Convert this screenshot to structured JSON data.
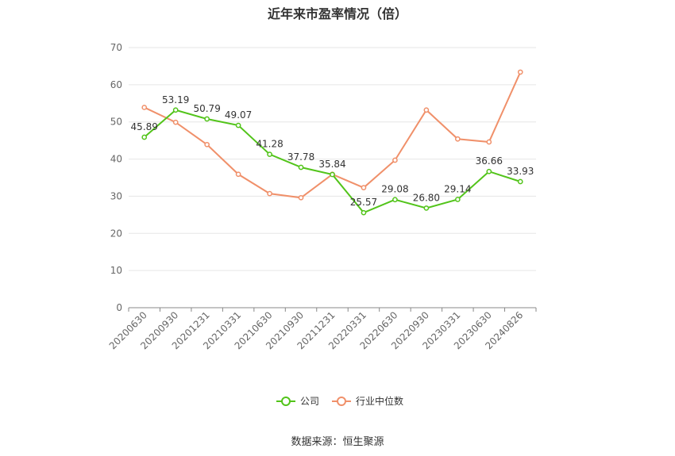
{
  "chart_data": {
    "type": "line",
    "title": "近年来市盈率情况（倍）",
    "xlabel": "",
    "ylabel": "",
    "ylim": [
      0,
      70
    ],
    "yticks": [
      0,
      10,
      20,
      30,
      40,
      50,
      60,
      70
    ],
    "grid": true,
    "legend_position": "bottom",
    "categories": [
      "20200630",
      "20200930",
      "20201231",
      "20210331",
      "20210630",
      "20210930",
      "20211231",
      "20220331",
      "20220630",
      "20220930",
      "20230331",
      "20230630",
      "20240826"
    ],
    "series": [
      {
        "name": "公司",
        "color": "#52c41a",
        "values": [
          45.89,
          53.19,
          50.79,
          49.07,
          41.28,
          37.78,
          35.84,
          25.57,
          29.08,
          26.8,
          29.14,
          36.66,
          33.93
        ],
        "labels": [
          "45.89",
          "53.19",
          "50.79",
          "49.07",
          "41.28",
          "37.78",
          "35.84",
          "25.57",
          "29.08",
          "26.80",
          "29.14",
          "36.66",
          "33.93"
        ]
      },
      {
        "name": "行业中位数",
        "color": "#f0906a",
        "values": [
          53.9,
          49.9,
          43.9,
          35.9,
          30.7,
          29.6,
          35.9,
          32.3,
          39.7,
          53.2,
          45.4,
          44.6,
          63.4
        ]
      }
    ]
  },
  "source_text": "数据来源：恒生聚源"
}
